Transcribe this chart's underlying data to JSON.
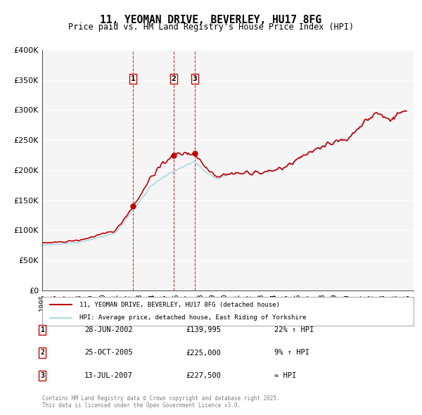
{
  "title": "11, YEOMAN DRIVE, BEVERLEY, HU17 8FG",
  "subtitle": "Price paid vs. HM Land Registry's House Price Index (HPI)",
  "hpi_legend": "HPI: Average price, detached house, East Riding of Yorkshire",
  "property_legend": "11, YEOMAN DRIVE, BEVERLEY, HU17 8FG (detached house)",
  "property_color": "#c00000",
  "hpi_color": "#add8e6",
  "background_color": "#f5f5f5",
  "grid_color": "#ffffff",
  "sale_dates": [
    "2002-06-28",
    "2005-10-25",
    "2007-07-13"
  ],
  "sale_prices": [
    139995,
    225000,
    227500
  ],
  "sale_labels": [
    "1",
    "2",
    "3"
  ],
  "sale_info": [
    {
      "label": "1",
      "date": "28-JUN-2002",
      "price": "£139,995",
      "hpi_rel": "22% ↑ HPI"
    },
    {
      "label": "2",
      "date": "25-OCT-2005",
      "price": "£225,000",
      "hpi_rel": "9% ↑ HPI"
    },
    {
      "label": "3",
      "date": "13-JUL-2007",
      "price": "£227,500",
      "hpi_rel": "≈ HPI"
    }
  ],
  "footer": "Contains HM Land Registry data © Crown copyright and database right 2025.\nThis data is licensed under the Open Government Licence v3.0.",
  "ylim": [
    0,
    400000
  ],
  "yticks": [
    0,
    50000,
    100000,
    150000,
    200000,
    250000,
    300000,
    350000,
    400000
  ],
  "ytick_labels": [
    "£0",
    "£50K",
    "£100K",
    "£150K",
    "£200K",
    "£250K",
    "£300K",
    "£350K",
    "£400K"
  ]
}
